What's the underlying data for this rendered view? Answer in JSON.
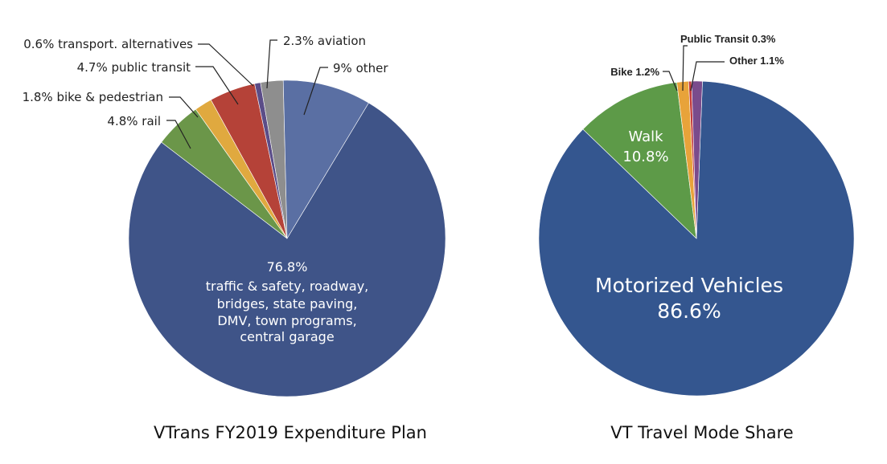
{
  "chart_data": [
    {
      "type": "pie",
      "title": "VTrans FY2019 Expenditure Plan",
      "slices": [
        {
          "value": 76.8,
          "label": "76.8%",
          "label_lines": [
            "traffic & safety, roadway,",
            "bridges, state paving,",
            "DMV, town programs,",
            "central garage"
          ],
          "color": "#3f5488"
        },
        {
          "value": 4.8,
          "label": "4.8% rail",
          "color": "#6b9649"
        },
        {
          "value": 1.8,
          "label": "1.8% bike & pedestrian",
          "color": "#e0a93f"
        },
        {
          "value": 4.7,
          "label": "4.7% public transit",
          "color": "#b54238"
        },
        {
          "value": 0.6,
          "label": "0.6% transport. alternatives",
          "color": "#5b4d88"
        },
        {
          "value": 2.3,
          "label": "2.3% aviation",
          "color": "#8e8e8e"
        },
        {
          "value": 9,
          "label": "9% other",
          "color": "#5a6fa3"
        }
      ]
    },
    {
      "type": "pie",
      "title": "VT Travel Mode Share",
      "slices": [
        {
          "value": 86.6,
          "label_lines": [
            "Motorized Vehicles",
            "86.6%"
          ],
          "color": "#34568f"
        },
        {
          "value": 10.8,
          "label_lines": [
            "Walk",
            "10.8%"
          ],
          "color": "#5d9a48"
        },
        {
          "value": 1.2,
          "label": "Bike 1.2%",
          "color": "#e8a33a"
        },
        {
          "value": 0.3,
          "label": "Public Transit 0.3%",
          "color": "#c43a3a"
        },
        {
          "value": 1.1,
          "label": "Other 1.1%",
          "color": "#7a4b8c"
        }
      ]
    }
  ]
}
